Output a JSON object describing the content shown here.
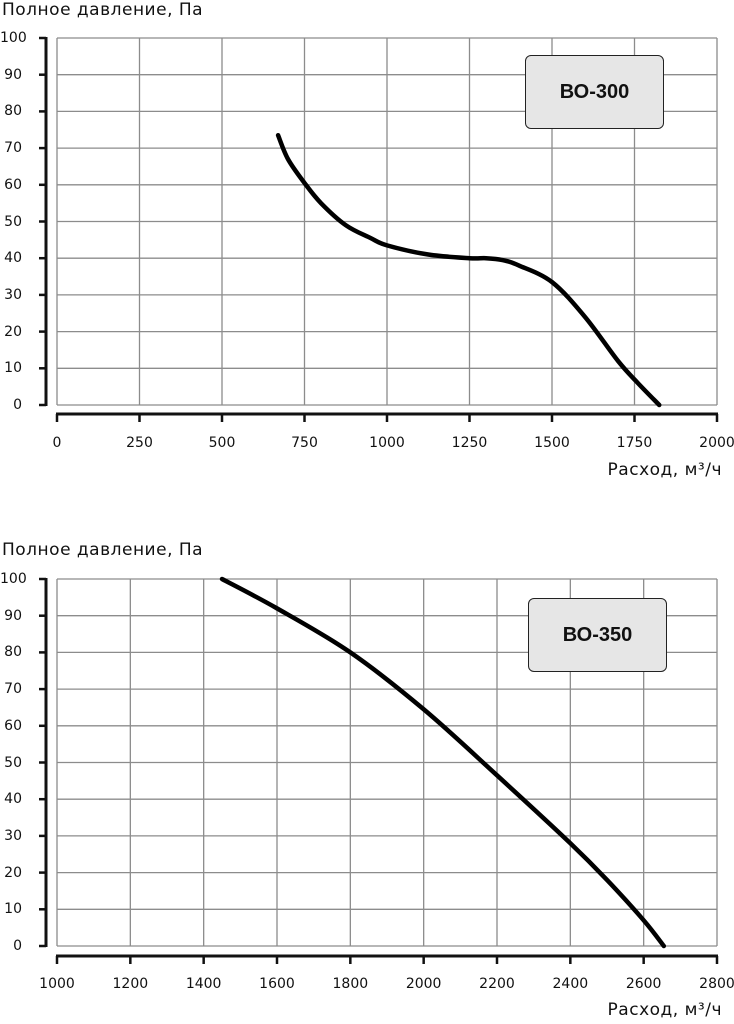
{
  "chart_data": [
    {
      "type": "line",
      "title": "ВО-300",
      "ylabel": "Полное давление, Па",
      "xlabel": "Расход, м³/ч",
      "xlim": [
        0,
        2000
      ],
      "ylim": [
        0,
        100
      ],
      "x_ticks": [
        "0",
        "250",
        "500",
        "750",
        "1000",
        "1250",
        "1500",
        "1750",
        "2000"
      ],
      "y_ticks": [
        "0",
        "10",
        "20",
        "30",
        "40",
        "50",
        "60",
        "70",
        "80",
        "90",
        "100"
      ],
      "grid": true,
      "series": [
        {
          "name": "ВО-300",
          "x": [
            670,
            700,
            750,
            800,
            875,
            950,
            1000,
            1125,
            1250,
            1300,
            1350,
            1400,
            1500,
            1600,
            1700,
            1760,
            1825
          ],
          "y": [
            73.5,
            67,
            60.5,
            55,
            49,
            45.5,
            43.5,
            41,
            40,
            40,
            39.5,
            38,
            33.5,
            24,
            12,
            6,
            0
          ]
        }
      ]
    },
    {
      "type": "line",
      "title": "ВО-350",
      "ylabel": "Полное давление, Па",
      "xlabel": "Расход, м³/ч",
      "xlim": [
        1000,
        2800
      ],
      "ylim": [
        0,
        100
      ],
      "x_ticks": [
        "1000",
        "1200",
        "1400",
        "1600",
        "1800",
        "2000",
        "2200",
        "2400",
        "2600",
        "2800"
      ],
      "y_ticks": [
        "0",
        "10",
        "20",
        "30",
        "40",
        "50",
        "60",
        "70",
        "80",
        "90",
        "100"
      ],
      "grid": true,
      "series": [
        {
          "name": "ВО-350",
          "x": [
            1450,
            1600,
            1800,
            2000,
            2200,
            2400,
            2500,
            2600,
            2655
          ],
          "y": [
            100,
            92,
            80,
            64.5,
            46.5,
            28,
            18,
            7,
            0
          ]
        }
      ]
    }
  ],
  "charts": [
    {
      "badge": "ВО-300",
      "ylabel": "Полное давление, Па",
      "xlabel": "Расход, м³/ч"
    },
    {
      "badge": "ВО-350",
      "ylabel": "Полное давление, Па",
      "xlabel": "Расход, м³/ч"
    }
  ],
  "colors": {
    "grid": "#8c8c8c",
    "axis": "#111111",
    "curve": "#000000",
    "badge_bg": "#e6e6e6"
  }
}
